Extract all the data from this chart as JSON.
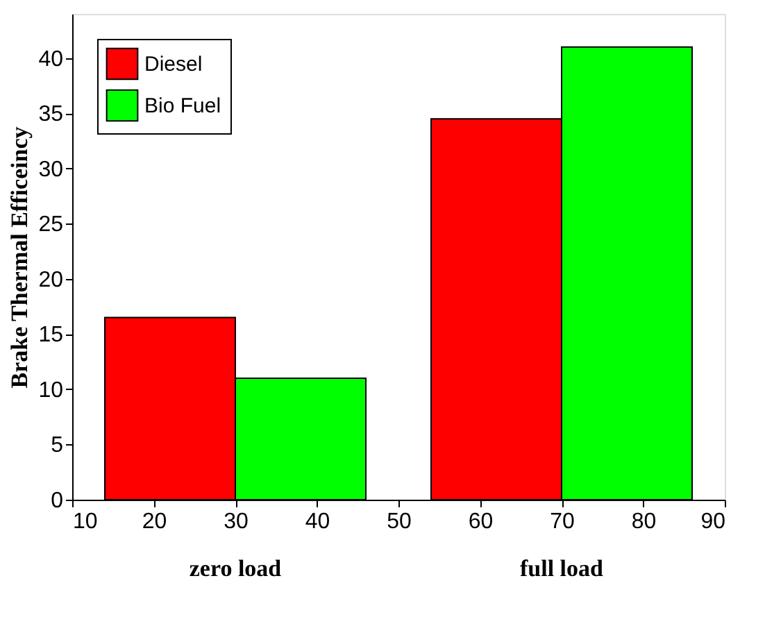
{
  "chart_data": {
    "type": "bar",
    "ylabel": "Brake Thermal Efficeincy",
    "series": [
      {
        "name": "Diesel",
        "color": "#ff0000",
        "x": [
          22,
          62
        ],
        "values": [
          16.5,
          34.5
        ]
      },
      {
        "name": "Bio Fuel",
        "color": "#00ff00",
        "x": [
          38,
          78
        ],
        "values": [
          11,
          41
        ]
      }
    ],
    "xlim": [
      10,
      90
    ],
    "xticks": [
      10,
      20,
      30,
      40,
      50,
      60,
      70,
      80,
      90
    ],
    "ylim": [
      0,
      44
    ],
    "yticks": [
      0,
      5,
      10,
      15,
      20,
      25,
      30,
      35,
      40
    ],
    "annotations": [
      "zero load",
      "full load"
    ],
    "grid": false,
    "legend": "top left"
  }
}
